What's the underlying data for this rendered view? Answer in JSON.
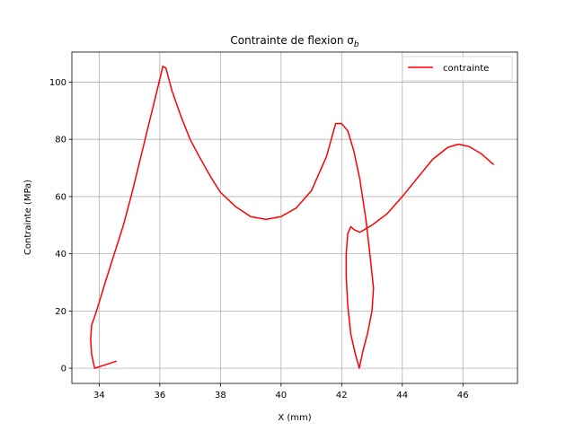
{
  "chart_data": {
    "type": "line",
    "title": "Contrainte de flexion σ",
    "title_subscript": "b",
    "xlabel": "X (mm)",
    "ylabel": "Contrainte (MPa)",
    "xlim": [
      33.1,
      47.8
    ],
    "ylim": [
      -5.3,
      110.5
    ],
    "xticks": [
      34,
      36,
      38,
      40,
      42,
      44,
      46
    ],
    "yticks": [
      0,
      20,
      40,
      60,
      80,
      100
    ],
    "grid": true,
    "legend_position": "top-right",
    "series": [
      {
        "name": "contrainte",
        "color": "#ff0000",
        "points": [
          [
            34.55,
            2.4
          ],
          [
            34.2,
            1.2
          ],
          [
            33.85,
            0.0
          ],
          [
            33.75,
            5.0
          ],
          [
            33.72,
            10.0
          ],
          [
            33.75,
            15.0
          ],
          [
            33.85,
            18.0
          ],
          [
            34.0,
            23.0
          ],
          [
            34.2,
            30.0
          ],
          [
            34.5,
            40.0
          ],
          [
            34.8,
            50.0
          ],
          [
            35.1,
            62.0
          ],
          [
            35.4,
            75.0
          ],
          [
            35.7,
            88.0
          ],
          [
            36.0,
            101.0
          ],
          [
            36.1,
            105.5
          ],
          [
            36.2,
            105.0
          ],
          [
            36.4,
            97.0
          ],
          [
            36.7,
            88.0
          ],
          [
            37.0,
            80.0
          ],
          [
            37.3,
            74.0
          ],
          [
            37.7,
            66.5
          ],
          [
            38.0,
            61.5
          ],
          [
            38.5,
            56.5
          ],
          [
            39.0,
            53.0
          ],
          [
            39.5,
            52.0
          ],
          [
            40.0,
            53.0
          ],
          [
            40.5,
            56.0
          ],
          [
            41.0,
            62.0
          ],
          [
            41.5,
            74.0
          ],
          [
            41.8,
            85.5
          ],
          [
            42.0,
            85.5
          ],
          [
            42.2,
            83.0
          ],
          [
            42.4,
            76.0
          ],
          [
            42.6,
            66.0
          ],
          [
            42.8,
            52.0
          ],
          [
            42.95,
            38.0
          ],
          [
            43.05,
            28.0
          ],
          [
            43.0,
            20.0
          ],
          [
            42.85,
            12.0
          ],
          [
            42.7,
            6.0
          ],
          [
            42.58,
            0.0
          ],
          [
            42.45,
            5.0
          ],
          [
            42.3,
            12.0
          ],
          [
            42.2,
            22.0
          ],
          [
            42.15,
            32.0
          ],
          [
            42.15,
            40.0
          ],
          [
            42.2,
            47.0
          ],
          [
            42.3,
            49.5
          ],
          [
            42.4,
            48.5
          ],
          [
            42.6,
            47.5
          ],
          [
            43.0,
            50.0
          ],
          [
            43.5,
            54.0
          ],
          [
            44.0,
            60.0
          ],
          [
            44.5,
            66.5
          ],
          [
            45.0,
            73.0
          ],
          [
            45.5,
            77.2
          ],
          [
            45.85,
            78.3
          ],
          [
            46.2,
            77.5
          ],
          [
            46.6,
            75.0
          ],
          [
            47.0,
            71.3
          ]
        ]
      }
    ]
  }
}
